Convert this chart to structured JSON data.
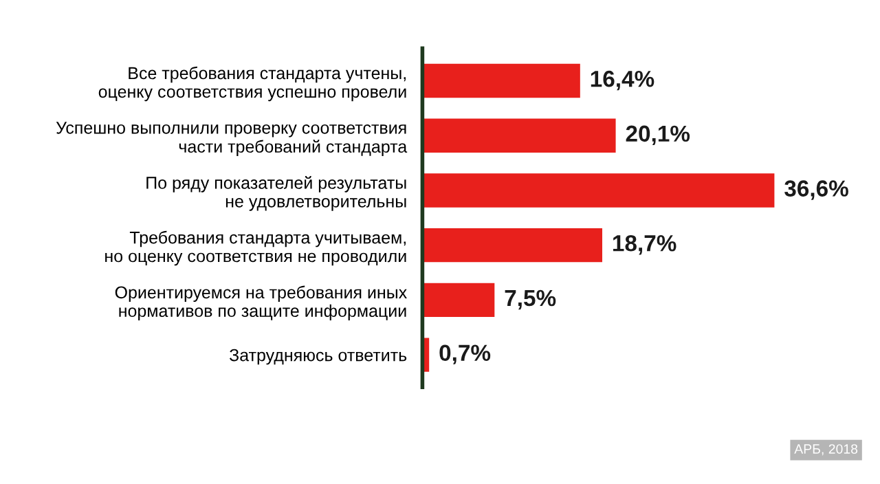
{
  "chart_data": {
    "type": "bar",
    "orientation": "horizontal",
    "categories": [
      "Все требования стандарта учтены,\nоценку соответствия успешно провели",
      "Успешно выполнили проверку соответствия\nчасти требований стандарта",
      "По ряду показателей результаты\nне удовлетворительны",
      "Требования стандарта учитываем,\nно оценку соответствия не проводили",
      "Ориентируемся на требования иных\nнормативов по защите информации",
      "Затрудняюсь ответить"
    ],
    "values": [
      16.4,
      20.1,
      36.6,
      18.7,
      7.5,
      0.7
    ],
    "value_labels": [
      "16,4%",
      "20,1%",
      "36,6%",
      "18,7%",
      "7,5%",
      "0,7%"
    ],
    "color": "#e8201c",
    "tick_labels": "y",
    "grid": false,
    "legend": false,
    "annotations": [
      "АРБ, 2018"
    ]
  }
}
